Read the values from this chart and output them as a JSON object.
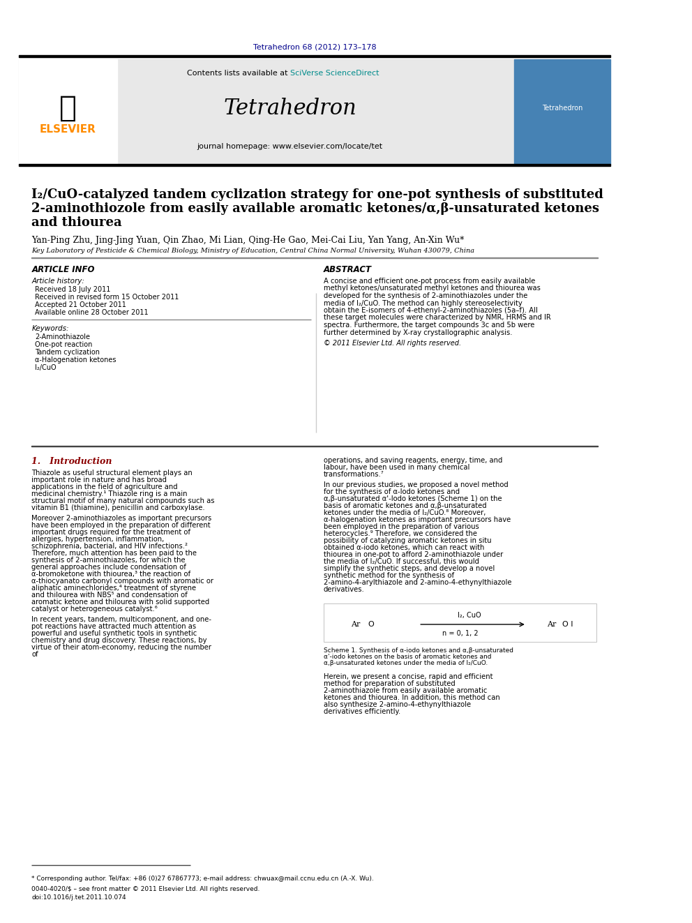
{
  "page_bg": "#ffffff",
  "top_journal_text": "Tetrahedron 68 (2012) 173–178",
  "top_journal_color": "#00008B",
  "header_bg": "#e8e8e8",
  "header_contents_text": "Contents lists available at ",
  "header_sciverse_text": "SciVerse ScienceDirect",
  "header_sciverse_color": "#008B8B",
  "header_journal_name": "Tetrahedron",
  "header_homepage_text": "journal homepage: www.elsevier.com/locate/tet",
  "elsevier_color": "#FF8C00",
  "elsevier_text": "ELSEVIER",
  "article_title_line1": "I₂/CuO-catalyzed tandem cyclization strategy for one-pot synthesis of substituted",
  "article_title_line2": "2-aminothiozole from easily available aromatic ketones/α,β-unsaturated ketones",
  "article_title_line3": "and thiourea",
  "authors_text": "Yan-Ping Zhu, Jing-Jing Yuan, Qin Zhao, Mi Lian, Qing-He Gao, Mei-Cai Liu, Yan Yang, An-Xin Wu*",
  "affiliation_text": "Key Laboratory of Pesticide & Chemical Biology, Ministry of Education, Central China Normal University, Wuhan 430079, China",
  "article_info_title": "ARTICLE INFO",
  "article_history_label": "Article history:",
  "received_text": "Received 18 July 2011",
  "received_revised_text": "Received in revised form 15 October 2011",
  "accepted_text": "Accepted 21 October 2011",
  "available_text": "Available online 28 October 2011",
  "keywords_label": "Keywords:",
  "keyword1": "2-Aminothiazole",
  "keyword2": "One-pot reaction",
  "keyword3": "Tandem cyclization",
  "keyword4": "α-Halogenation ketones",
  "keyword5": "I₂/CuO",
  "abstract_title": "ABSTRACT",
  "abstract_text": "A concise and efficient one-pot process from easily available methyl ketones/unsaturated methyl ketones and thiourea was developed for the synthesis of 2-aminothiazoles under the media of I₂/CuO. The method can highly stereoselectivity obtain the E-isomers of 4-ethenyl-2-aminothiazoles (5a–f). All these target molecules were characterized by NMR, HRMS and IR spectra. Furthermore, the target compounds 3c and 5b were further determined by X-ray crystallographic analysis.",
  "copyright_text": "© 2011 Elsevier Ltd. All rights reserved.",
  "intro_title": "1.   Introduction",
  "intro_text1": "Thiazole as useful structural element plays an important role in nature and has broad applications in the field of agriculture and medicinal chemistry.¹ Thiazole ring is a main structural motif of many natural compounds such as vitamin B1 (thiamine), penicillin and carboxylase.",
  "intro_text2": "Moreover 2-aminothiazoles as important precursors have been employed in the preparation of different important drugs required for the treatment of allergies, hypertension, inflammation, schizophrenia, bacterial, and HIV infections.² Therefore, much attention has been paid to the synthesis of 2-aminothiazoles, for which the general approaches include condensation of α-bromoketone with thiourea,³ the reaction of α-thiocyanato carbonyl compounds with aromatic or aliphatic aminechlorides,⁴ treatment of styrene and thilourea with NBS⁵ and condensation of aromatic ketone and thilourea with solid supported catalyst or heterogeneous catalyst.⁶",
  "intro_text3": "In recent years, tandem, multicomponent, and one-pot reactions have attracted much attention as powerful and useful synthetic tools in synthetic chemistry and drug discovery. These reactions, by virtue of their atom-economy, reducing the number of",
  "right_col_text1": "operations, and saving reagents, energy, time, and labour, have been used in many chemical transformations.⁷",
  "right_col_text2": "In our previous studies, we proposed a novel method for the synthesis of α-Iodo ketones and α,β-unsaturated α'-Iodo ketones (Scheme 1) on the basis of aromatic ketones and α,β-unsaturated ketones under the media of I₂/CuO.⁸ Moreover, α-halogenation ketones as important precursors have been employed in the preparation of various heterocycles.⁹ Therefore, we considered the possibility of catalyzing aromatic ketones in situ obtained α-iodo ketones, which can react with thiourea in one-pot to afford 2-aminothiazole under the media of I₂/CuO. If successful, this would simplify the synthetic steps, and develop a novel synthetic method for the synthesis of 2-amino-4-arylthiazole and 2-amino-4-ethynylthiazole derivatives.",
  "scheme1_text": "Scheme 1. Synthesis of α-iodo ketones and α,β-unsaturated α'-iodo ketones on the basis of aromatic ketones and α,β-unsaturated ketones under the media of I₂/CuO.",
  "herein_text": "Herein, we present a concise, rapid and efficient method for preparation of substituted 2-aminothiazole from easily available aromatic ketones and thiourea. In addition, this method can also synthesize 2-amino-4-ethynylthiazole derivatives efficiently.",
  "footnote_text": "* Corresponding author. Tel/fax: +86 (0)27 67867773; e-mail address: chwuax@mail.ccnu.edu.cn (A.-X. Wu).",
  "footer_text1": "0040-4020/$ – see front matter © 2011 Elsevier Ltd. All rights reserved.",
  "footer_text2": "doi:10.1016/j.tet.2011.10.074",
  "section_color": "#8B0000",
  "text_color": "#000000",
  "body_fontsize": 7.5,
  "small_fontsize": 6.5
}
